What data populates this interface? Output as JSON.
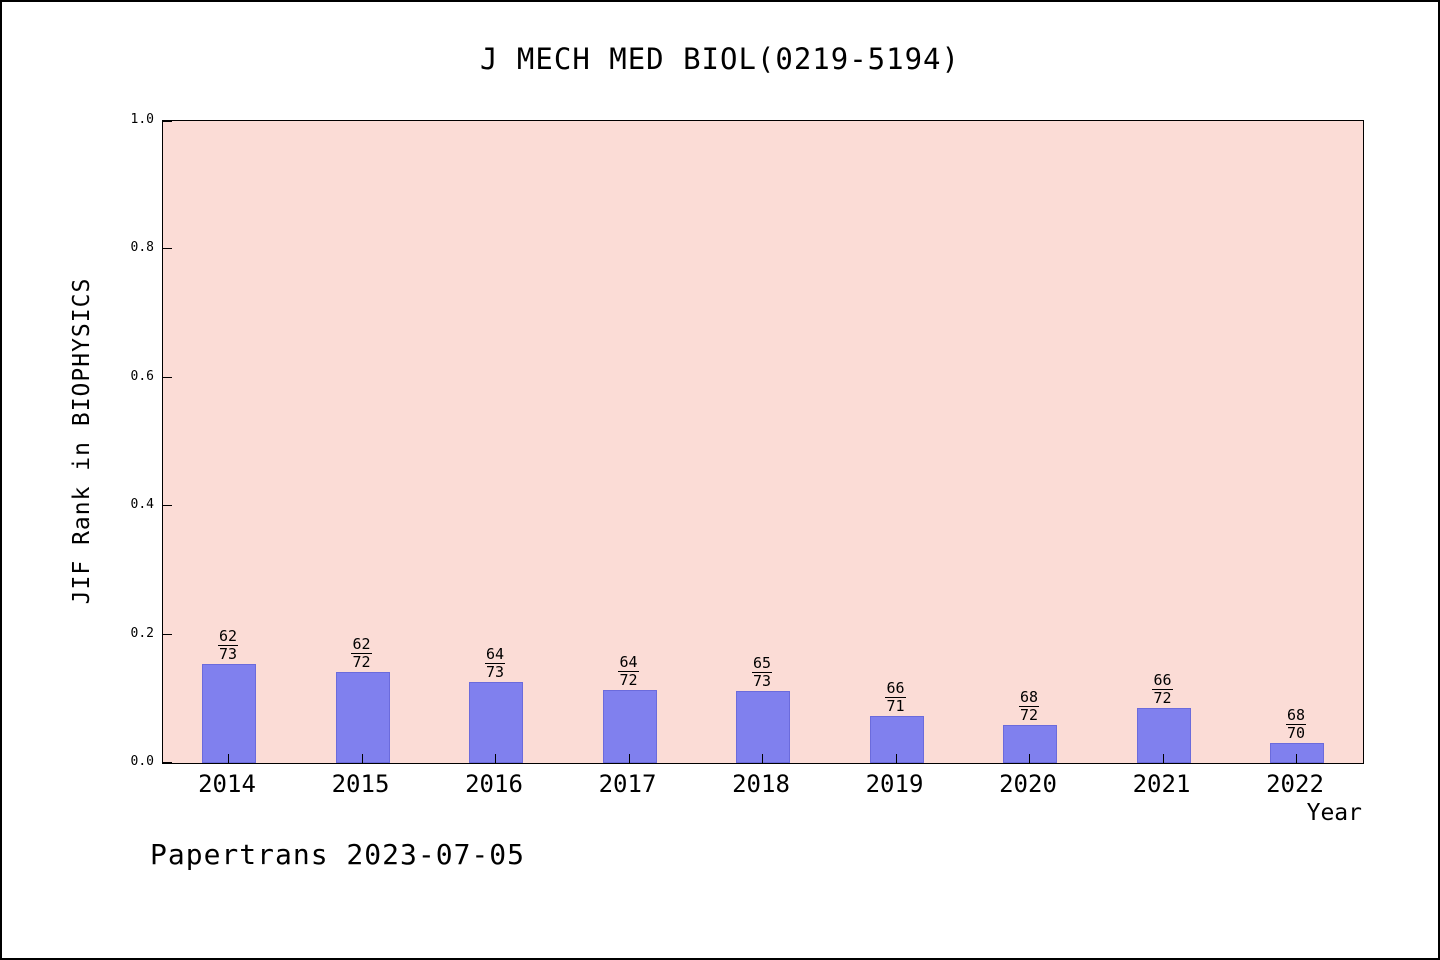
{
  "title": "J MECH MED BIOL(0219-5194)",
  "footer": "Papertrans 2023-07-05",
  "chart_data": {
    "type": "bar",
    "title": "J MECH MED BIOL(0219-5194)",
    "xlabel": "Year",
    "ylabel": "JIF Rank in BIOPHYSICS",
    "ylim": [
      0,
      1
    ],
    "yticks": [
      0,
      0.2,
      0.4,
      0.6,
      0.8,
      1
    ],
    "grid": false,
    "legend": "none",
    "plot_bg": "#fbdcd6",
    "bar_color": "#8080ee",
    "bar_edge_color": "#6b6bdc",
    "categories": [
      "2014",
      "2015",
      "2016",
      "2017",
      "2018",
      "2019",
      "2020",
      "2021",
      "2022"
    ],
    "bars": [
      {
        "year": "2014",
        "rank": 62,
        "total": 73,
        "value": 0.1507
      },
      {
        "year": "2015",
        "rank": 62,
        "total": 72,
        "value": 0.1389
      },
      {
        "year": "2016",
        "rank": 64,
        "total": 73,
        "value": 0.1233
      },
      {
        "year": "2017",
        "rank": 64,
        "total": 72,
        "value": 0.1111
      },
      {
        "year": "2018",
        "rank": 65,
        "total": 73,
        "value": 0.1096
      },
      {
        "year": "2019",
        "rank": 66,
        "total": 71,
        "value": 0.0704
      },
      {
        "year": "2020",
        "rank": 68,
        "total": 72,
        "value": 0.0556
      },
      {
        "year": "2021",
        "rank": 66,
        "total": 72,
        "value": 0.0833
      },
      {
        "year": "2022",
        "rank": 68,
        "total": 70,
        "value": 0.0286
      }
    ]
  }
}
